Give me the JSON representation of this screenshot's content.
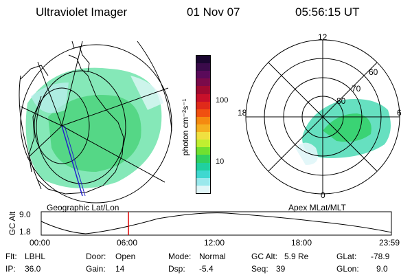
{
  "header": {
    "instrument": "Ultraviolet Imager",
    "date": "01 Nov 07",
    "time": "05:56:15 UT"
  },
  "colorbar": {
    "unit_label": "photon cm⁻²s⁻¹",
    "ticks": [
      "100",
      "10"
    ],
    "colors": [
      "#1a0630",
      "#3a0a4a",
      "#5a0a5a",
      "#7a0a4a",
      "#a00a30",
      "#c8102a",
      "#e02a1a",
      "#f05010",
      "#f58a10",
      "#f5b020",
      "#f0e040",
      "#c0ef30",
      "#70e030",
      "#30d060",
      "#20d0a0",
      "#40d8d0",
      "#9ae8ec",
      "#e0f6f8"
    ]
  },
  "panels": {
    "left_title": "Geographic Lat/Lon",
    "right_title": "Apex MLat/MLT",
    "mlt_labels": {
      "top": "12",
      "left": "18",
      "right": "6",
      "bottom": "0"
    },
    "mlat_labels": [
      "60",
      "70",
      "80"
    ]
  },
  "altitude_plot": {
    "ylabel": "GC Alt",
    "y_ticks": [
      "9.0",
      "1.8"
    ],
    "x_ticks": [
      "00:00",
      "06:00",
      "12:00",
      "18:00",
      "23:59"
    ]
  },
  "status": {
    "flt_label": "Flt:",
    "flt_value": "LBHL",
    "ip_label": "IP:",
    "ip_value": "36.0",
    "door_label": "Door:",
    "door_value": "Open",
    "gain_label": "Gain:",
    "gain_value": "14",
    "mode_label": "Mode:",
    "mode_value": "Normal",
    "dsp_label": "Dsp:",
    "dsp_value": "-5.4",
    "gcalt_label": "GC Alt:",
    "gcalt_value": "5.9 Re",
    "seq_label": "Seq:",
    "seq_value": "39",
    "glat_label": "GLat:",
    "glat_value": "-78.9",
    "glon_label": "GLon:",
    "glon_value": "9.0"
  }
}
